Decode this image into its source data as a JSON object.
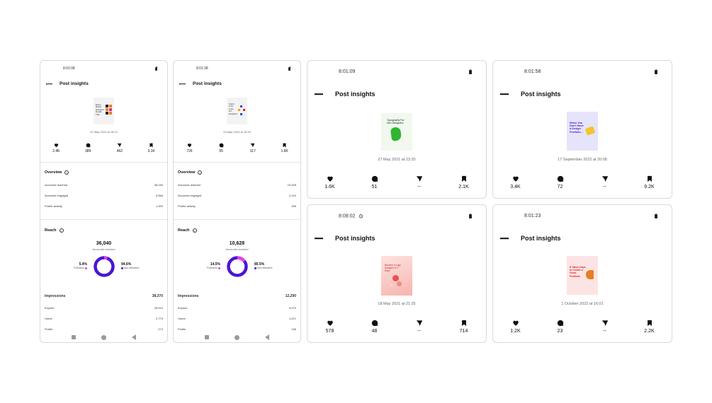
{
  "colors": {
    "accent": "#4a16d6",
    "secondary": "#ea3ee6",
    "border": "#d9d9d9"
  },
  "icons": [
    "battery-icon",
    "back-arrow-icon",
    "heart-icon",
    "comment-icon",
    "share-icon",
    "bookmark-icon",
    "info-icon",
    "alarm-icon"
  ],
  "cards": [
    {
      "time": "8:02:08",
      "title": "Post insights",
      "date": "20 May 2024 at 18:23",
      "stats": {
        "likes": "2.4K",
        "comments": "389",
        "shares": "462",
        "saves": "3.1K"
      },
      "overview": {
        "heading": "Overview",
        "rows": [
          {
            "label": "Accounts reached",
            "value": "36,040"
          },
          {
            "label": "Accounts engaged",
            "value": "5,568"
          },
          {
            "label": "Profile activity",
            "value": "1,009"
          }
        ]
      },
      "reach": {
        "heading": "Reach",
        "value": "36,040",
        "caption": "Accounts reached",
        "followers_pct": "5.4%",
        "followers_label": "Followers",
        "followers_frac": 0.054,
        "nonfollowers_pct": "94.6%",
        "nonfollowers_label": "Non-followers"
      },
      "impressions": {
        "label": "Impressions",
        "value": "38,370",
        "rows": [
          {
            "label": "Explore",
            "value": "28,514"
          },
          {
            "label": "Home",
            "value": "2,779"
          },
          {
            "label": "Profile",
            "value": "174"
          }
        ]
      },
      "thumb": {
        "lines": [
          "Every",
          "Brand",
          "Designer",
          "Needs",
          "This"
        ]
      }
    },
    {
      "time": "8:01:38",
      "title": "Post insights",
      "date": "23 May 2024 at 19:15",
      "stats": {
        "likes": "726",
        "comments": "55",
        "shares": "117",
        "saves": "1.6K"
      },
      "overview": {
        "heading": "Overview",
        "rows": [
          {
            "label": "Accounts reached",
            "value": "10,628"
          },
          {
            "label": "Accounts engaged",
            "value": "2,210"
          },
          {
            "label": "Profile activity",
            "value": "395"
          }
        ]
      },
      "reach": {
        "heading": "Reach",
        "value": "10,628",
        "caption": "Accounts reached",
        "followers_pct": "14.5%",
        "followers_label": "Followers",
        "followers_frac": 0.145,
        "nonfollowers_pct": "85.5%",
        "nonfollowers_label": "Non-followers"
      },
      "impressions": {
        "label": "Impressions",
        "value": "12,290",
        "rows": [
          {
            "label": "Explore",
            "value": "5,070"
          },
          {
            "label": "Home",
            "value": "1,871"
          },
          {
            "label": "Profile",
            "value": "246"
          }
        ]
      },
      "thumb": {
        "lines": [
          "Check",
          "If It's",
          "Logo",
          "For",
          "Designers"
        ]
      }
    },
    {
      "time": "8:01:09",
      "title": "Post insights",
      "date": "27 May 2021 at 23:20",
      "stats": {
        "likes": "1.6K",
        "comments": "51",
        "shares": "--",
        "saves": "2.1K"
      },
      "thumb": {
        "text": "Typography For Non-Designers"
      }
    },
    {
      "time": "8:01:58",
      "title": "Post insights",
      "date": "17 September 2022 at 20:08",
      "stats": {
        "likes": "3.4K",
        "comments": "72",
        "shares": "--",
        "saves": "9.2K"
      },
      "thumb": {
        "text": "When You Don't Have a Design Portfolio..."
      }
    },
    {
      "time": "8:08:02",
      "title": "Post insights",
      "date": "18 May 2021 at 21:25",
      "stats": {
        "likes": "578",
        "comments": "48",
        "shares": "--",
        "saves": "714"
      },
      "thumb": {
        "text": "Become a Logo Designer In 7 Days"
      }
    },
    {
      "time": "8:01:23",
      "title": "Post insights",
      "date": "1 October 2022 at 16:01",
      "stats": {
        "likes": "1.2K",
        "comments": "23",
        "shares": "--",
        "saves": "2.2K"
      },
      "thumb": {
        "text": "It Takes Days to Create a Good Portfolio"
      }
    }
  ]
}
